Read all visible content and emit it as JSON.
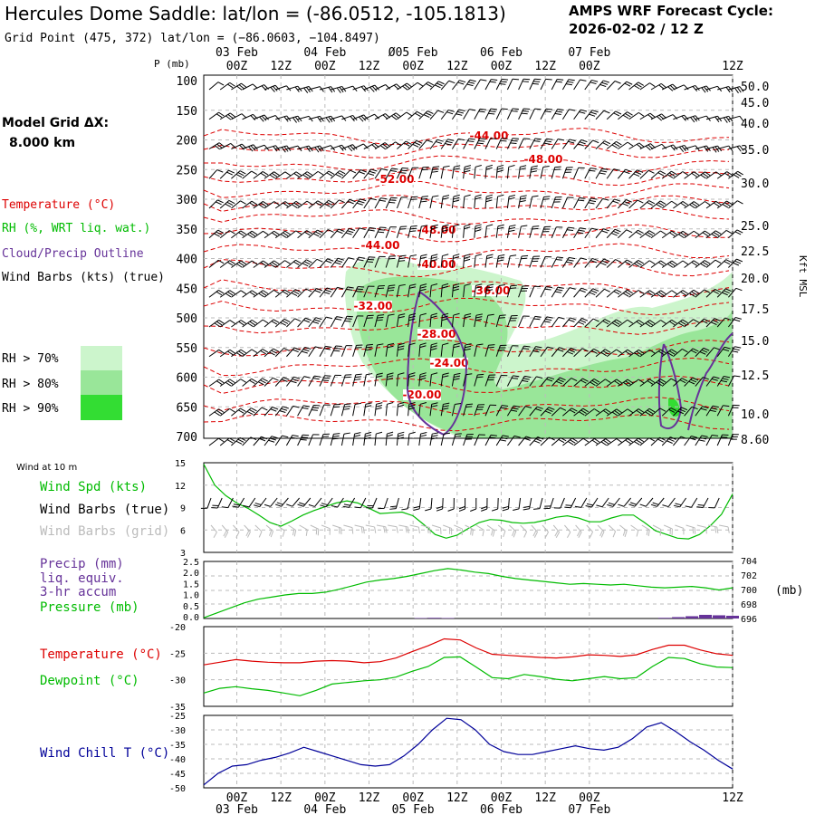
{
  "header": {
    "title": "Hercules Dome Saddle:  lat/lon = (-86.0512, -105.1813)",
    "subtitle": "Grid Point (475, 372) lat/lon = (−86.0603, −104.8497)",
    "cycle_line1": "AMPS WRF Forecast Cycle:",
    "cycle_line2": "2026-02-02 / 12  Z"
  },
  "time_axis": {
    "top_dates": [
      "03 Feb",
      "04 Feb",
      "Ø05 Feb",
      "06 Feb",
      "07 Feb"
    ],
    "top_hours": [
      "00Z",
      "12Z",
      "00Z",
      "12Z",
      "00Z",
      "12Z",
      "00Z",
      "12Z",
      "00Z",
      "12Z"
    ],
    "bottom_hours": [
      "00Z",
      "12Z",
      "00Z",
      "12Z",
      "00Z",
      "12Z",
      "00Z",
      "12Z",
      "00Z",
      "12Z"
    ],
    "bottom_dates": [
      "03 Feb",
      "04 Feb",
      "05 Feb",
      "06 Feb",
      "07 Feb"
    ]
  },
  "legend_left": {
    "model_grid": "Model Grid ΔX:",
    "model_dx": "8.000 km",
    "temperature": "Temperature (°C)",
    "rh": "RH (%, WRT liq. wat.)",
    "cloud": "Cloud/Precip Outline",
    "wind": "Wind Barbs (kts) (true)",
    "rh70": "RH > 70%",
    "rh80": "RH > 80%",
    "rh90": "RH > 90%",
    "colors": {
      "rh70": "#ccf5cc",
      "rh80": "#99e699",
      "rh90": "#33dd33",
      "temp": "#dd0000",
      "cloud": "#663399",
      "wind": "#000000"
    }
  },
  "profile": {
    "pressure_label": "P (mb)",
    "pressure_levels": [
      "100",
      "150",
      "200",
      "250",
      "300",
      "350",
      "400",
      "450",
      "500",
      "550",
      "600",
      "650",
      "700"
    ],
    "height_label": "Kft MSL",
    "heights": [
      "50.0",
      "45.0",
      "40.0",
      "35.0",
      "30.0",
      "25.0",
      "22.5",
      "20.0",
      "17.5",
      "15.0",
      "12.5",
      "10.0",
      "8.60"
    ],
    "contour_labels": [
      "-44.00",
      "-48.00",
      "-52.00",
      "-48.00",
      "-44.00",
      "-40.00",
      "-36.00",
      "-32.00",
      "-28.00",
      "-24.00",
      "-20.00"
    ]
  },
  "wind10": {
    "heading": "Wind at 10 m",
    "spd_label": "Wind Spd (kts)",
    "barbs_true_label": "Wind Barbs (true)",
    "barbs_grid_label": "Wind Barbs (grid)",
    "yticks": [
      "15",
      "12",
      "9",
      "6",
      "3"
    ]
  },
  "precip": {
    "label1": "Precip (mm)",
    "label2": "liq. equiv.",
    "label3": "3-hr accum",
    "pressure_label": "Pressure (mb)",
    "left_ticks": [
      "2.5",
      "2.0",
      "1.5",
      "1.0",
      "0.5",
      "0.0"
    ],
    "right_ticks": [
      "704",
      "702",
      "700",
      "698",
      "696"
    ],
    "unit": "(mb)"
  },
  "temp": {
    "temp_label": "Temperature (°C)",
    "dew_label": "Dewpoint (°C)",
    "yticks": [
      "-20",
      "-25",
      "-30",
      "-35"
    ]
  },
  "chill": {
    "label": "Wind Chill T (°C)",
    "yticks": [
      "-25",
      "-30",
      "-35",
      "-40",
      "-45",
      "-50"
    ]
  },
  "chart_data": [
    {
      "type": "line",
      "name": "wind-speed-10m",
      "x_hours": [
        0,
        3,
        6,
        9,
        12,
        15,
        18,
        21,
        24,
        27,
        30,
        33,
        36,
        39,
        42,
        45,
        48,
        51,
        54,
        57,
        60,
        63,
        66,
        69,
        72,
        75,
        78,
        81,
        84,
        87,
        90,
        93,
        96,
        99,
        102,
        105,
        108,
        111,
        114,
        117,
        120,
        123,
        126,
        129,
        132,
        135,
        138,
        141,
        144
      ],
      "series": [
        {
          "name": "Wind Spd (kts)",
          "color": "#00bb00",
          "values": [
            14.8,
            12.0,
            10.6,
            9.6,
            8.9,
            8.0,
            7.0,
            6.5,
            7.2,
            8.0,
            8.6,
            9.1,
            9.6,
            9.9,
            9.6,
            8.9,
            8.2,
            8.3,
            8.4,
            7.9,
            6.7,
            5.4,
            4.9,
            5.3,
            6.2,
            7.0,
            7.4,
            7.3,
            7.0,
            6.9,
            7.0,
            7.3,
            7.7,
            7.9,
            7.6,
            7.1,
            7.1,
            7.6,
            8.0,
            8.0,
            7.0,
            5.9,
            5.4,
            4.9,
            4.8,
            5.4,
            6.6,
            8.1,
            10.8
          ]
        }
      ],
      "ylim": [
        3,
        15
      ]
    },
    {
      "type": "line",
      "name": "surface-pressure",
      "series": [
        {
          "name": "Pressure (mb)",
          "color": "#00bb00",
          "values": [
            696.1,
            696.8,
            697.5,
            698.2,
            698.7,
            699.0,
            699.3,
            699.5,
            699.5,
            699.7,
            700.1,
            700.6,
            701.1,
            701.4,
            701.6,
            701.9,
            702.3,
            702.7,
            703.0,
            702.8,
            702.5,
            702.3,
            701.9,
            701.6,
            701.4,
            701.2,
            701.0,
            700.8,
            700.9,
            700.8,
            700.7,
            700.8,
            700.6,
            700.4,
            700.3,
            700.4,
            700.5,
            700.3,
            700.0,
            700.3
          ]
        }
      ],
      "ylim": [
        696,
        704
      ],
      "precip_mm": [
        0,
        0,
        0,
        0,
        0,
        0,
        0,
        0,
        0,
        0,
        0,
        0,
        0,
        0,
        0,
        0,
        0.02,
        0.03,
        0.02,
        0,
        0,
        0,
        0,
        0,
        0,
        0,
        0,
        0,
        0,
        0,
        0,
        0,
        0,
        0,
        0.03,
        0.06,
        0.1,
        0.16,
        0.14,
        0.12
      ]
    },
    {
      "type": "line",
      "name": "temperature-dewpoint",
      "series": [
        {
          "name": "Temperature (°C)",
          "color": "#dd0000",
          "values": [
            -27.2,
            -26.7,
            -26.2,
            -26.5,
            -26.7,
            -26.8,
            -26.8,
            -26.5,
            -26.4,
            -26.5,
            -26.8,
            -26.6,
            -25.9,
            -24.7,
            -23.6,
            -22.3,
            -22.5,
            -24.0,
            -25.2,
            -25.4,
            -25.6,
            -25.8,
            -25.9,
            -25.7,
            -25.3,
            -25.4,
            -25.6,
            -25.3,
            -24.3,
            -23.5,
            -23.5,
            -24.4,
            -25.1,
            -25.4
          ]
        },
        {
          "name": "Dewpoint (°C)",
          "color": "#00bb00",
          "values": [
            -32.5,
            -31.6,
            -31.3,
            -31.7,
            -32.0,
            -32.5,
            -33.0,
            -32.0,
            -30.8,
            -30.5,
            -30.2,
            -30.0,
            -29.5,
            -28.4,
            -27.5,
            -25.8,
            -25.7,
            -27.6,
            -29.6,
            -29.8,
            -29.0,
            -29.4,
            -29.9,
            -30.2,
            -29.8,
            -29.4,
            -29.8,
            -29.6,
            -27.5,
            -25.8,
            -26.0,
            -27.0,
            -27.6,
            -27.7
          ]
        }
      ],
      "ylim": [
        -35,
        -20
      ]
    },
    {
      "type": "line",
      "name": "wind-chill",
      "series": [
        {
          "name": "Wind Chill T (°C)",
          "color": "#000099",
          "values": [
            -49.0,
            -45.0,
            -42.5,
            -42.0,
            -40.5,
            -39.5,
            -38.0,
            -36.0,
            -37.5,
            -39.0,
            -40.5,
            -42.0,
            -42.5,
            -42.0,
            -39.0,
            -35.0,
            -30.0,
            -26.0,
            -26.5,
            -30.0,
            -35.0,
            -37.5,
            -38.5,
            -38.5,
            -37.5,
            -36.5,
            -35.5,
            -36.5,
            -37.0,
            -36.0,
            -33.0,
            -29.0,
            -27.5,
            -30.5,
            -34.0,
            -37.0,
            -40.5,
            -43.5
          ]
        }
      ],
      "ylim": [
        -50,
        -25
      ]
    }
  ]
}
